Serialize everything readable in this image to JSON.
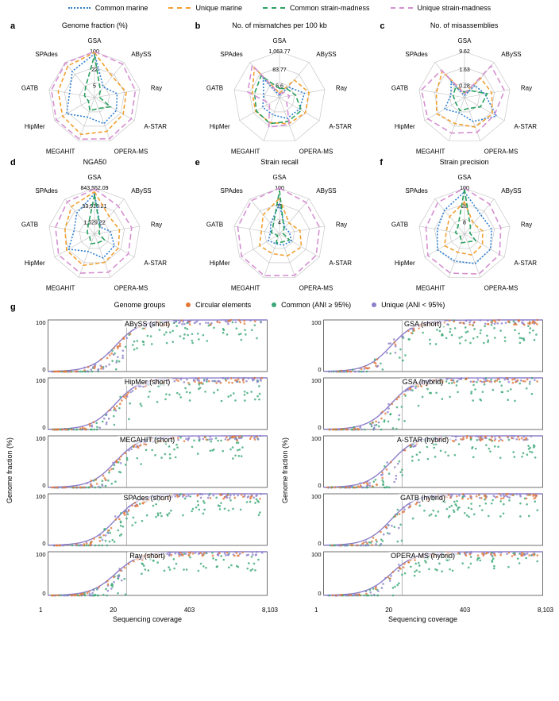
{
  "colors": {
    "common_marine": "#2f7fd1",
    "unique_marine": "#f0a030",
    "common_strain": "#2aa060",
    "unique_strain": "#d58fd1",
    "circular": "#e27838",
    "common_scatter": "#3aa777",
    "unique_scatter": "#8d7fc9",
    "grid": "#bfbfbf",
    "text": "#000000"
  },
  "top_legend": [
    {
      "label": "Common marine",
      "color": "#2f7fd1",
      "style": "dotted"
    },
    {
      "label": "Unique marine",
      "color": "#f0a030",
      "style": "dashed"
    },
    {
      "label": "Common strain-madness",
      "color": "#2aa060",
      "style": "dashed"
    },
    {
      "label": "Unique strain-madness",
      "color": "#d58fd1",
      "style": "dashed"
    }
  ],
  "radar": {
    "axes": [
      "GSA",
      "ABySS",
      "Ray",
      "A-STAR",
      "OPERA-MS",
      "MEGAHIT",
      "HipMer",
      "GATB",
      "SPAdes"
    ],
    "panels": [
      {
        "id": "a",
        "title": "Genome fraction (%)",
        "ticks": [
          "100",
          "22",
          "5"
        ],
        "series": {
          "common_marine": [
            95,
            30,
            50,
            55,
            60,
            45,
            70,
            55,
            75
          ],
          "unique_marine": [
            98,
            60,
            70,
            72,
            78,
            85,
            80,
            80,
            90
          ],
          "common_strain": [
            92,
            20,
            10,
            40,
            25,
            30,
            15,
            22,
            30
          ],
          "unique_strain": [
            100,
            95,
            90,
            92,
            95,
            96,
            96,
            95,
            98
          ]
        }
      },
      {
        "id": "b",
        "title": "No. of mismatches per 100 kb",
        "ticks": [
          "1,063.77",
          "83.77",
          "6.6"
        ],
        "series": {
          "common_marine": [
            5,
            30,
            55,
            50,
            48,
            40,
            42,
            35,
            55
          ],
          "unique_marine": [
            10,
            50,
            65,
            65,
            60,
            58,
            60,
            60,
            85
          ],
          "common_strain": [
            20,
            25,
            35,
            55,
            55,
            60,
            58,
            55,
            62
          ],
          "unique_strain": [
            8,
            15,
            22,
            18,
            62,
            68,
            25,
            70,
            92
          ]
        }
      },
      {
        "id": "c",
        "title": "No. of misassemblies",
        "ticks": [
          "9.62",
          "1.63",
          "0.28"
        ],
        "series": {
          "common_marine": [
            5,
            35,
            45,
            80,
            55,
            35,
            50,
            30,
            45
          ],
          "unique_marine": [
            10,
            55,
            60,
            70,
            68,
            60,
            70,
            62,
            75
          ],
          "common_strain": [
            12,
            20,
            50,
            40,
            25,
            30,
            22,
            25,
            30
          ],
          "unique_strain": [
            8,
            90,
            88,
            75,
            80,
            82,
            92,
            95,
            78
          ]
        }
      },
      {
        "id": "d",
        "title": "NGA50",
        "ticks": [
          "843,552.09",
          "33,916.21",
          "1,529.22"
        ],
        "series": {
          "common_marine": [
            88,
            20,
            35,
            50,
            55,
            40,
            65,
            45,
            60
          ],
          "unique_marine": [
            92,
            50,
            55,
            60,
            65,
            72,
            70,
            65,
            78
          ],
          "common_strain": [
            85,
            18,
            10,
            25,
            20,
            22,
            12,
            16,
            22
          ],
          "unique_strain": [
            98,
            80,
            82,
            85,
            88,
            90,
            90,
            86,
            92
          ]
        }
      },
      {
        "id": "e",
        "title": "Strain recall",
        "ticks": [
          "100",
          "19",
          "4"
        ],
        "series": {
          "common_marine": [
            65,
            18,
            22,
            30,
            25,
            22,
            28,
            20,
            30
          ],
          "unique_marine": [
            78,
            32,
            45,
            55,
            50,
            45,
            50,
            40,
            55
          ],
          "common_strain": [
            95,
            15,
            8,
            25,
            18,
            20,
            5,
            18,
            22
          ],
          "unique_strain": [
            100,
            90,
            88,
            92,
            95,
            96,
            95,
            92,
            95
          ]
        }
      },
      {
        "id": "f",
        "title": "Strain precision",
        "ticks": [
          "100",
          "28",
          "8"
        ],
        "series": {
          "common_marine": [
            92,
            55,
            60,
            65,
            68,
            62,
            68,
            60,
            68
          ],
          "unique_marine": [
            70,
            30,
            40,
            45,
            48,
            42,
            50,
            40,
            50
          ],
          "common_strain": [
            98,
            20,
            12,
            28,
            18,
            20,
            10,
            20,
            22
          ],
          "unique_strain": [
            100,
            85,
            80,
            88,
            92,
            90,
            92,
            85,
            90
          ]
        }
      }
    ]
  },
  "scatter_legend": {
    "title": "Genome groups",
    "items": [
      {
        "label": "Circular elements",
        "color": "#e27838"
      },
      {
        "label": "Common (ANI ≥ 95%)",
        "color": "#3aa777"
      },
      {
        "label": "Unique (ANI < 95%)",
        "color": "#8d7fc9"
      }
    ]
  },
  "scatter": {
    "y_label": "Genome fraction (%)",
    "x_label": "Sequencing coverage",
    "x_ticks": [
      "1",
      "20",
      "403",
      "8,103"
    ],
    "y_ticks": [
      "0",
      "100"
    ],
    "left": [
      {
        "title": "ABySS (short)"
      },
      {
        "title": "HipMer (short)"
      },
      {
        "title": "MEGAHIT (short)"
      },
      {
        "title": "SPAdes (short)"
      },
      {
        "title": "Ray (short)"
      }
    ],
    "right": [
      {
        "title": "GSA (short)"
      },
      {
        "title": "GSA (hybrid)"
      },
      {
        "title": "A-STAR (hybrid)"
      },
      {
        "title": "GATB (hybrid)"
      },
      {
        "title": "OPERA-MS (hybrid)"
      }
    ]
  },
  "panel_g_label": "g"
}
